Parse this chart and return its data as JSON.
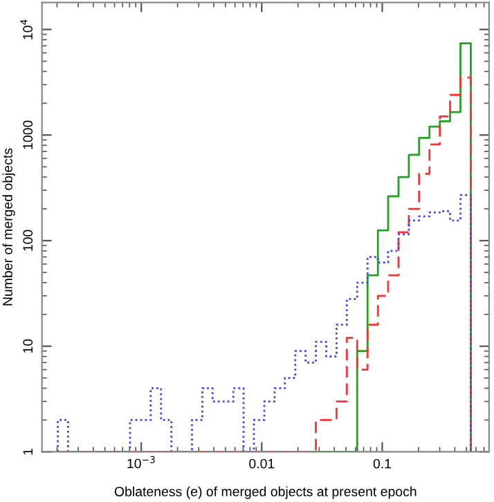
{
  "chart_data": {
    "type": "histogram",
    "xlabel": "Oblateness (e) of merged objects at present epoch",
    "ylabel": "Number of merged objects",
    "log": "xy",
    "bins": [
      0.000203,
      0.000247,
      0.000301,
      0.000366,
      0.000447,
      0.000543,
      0.000662,
      0.000807,
      0.000984,
      0.001197,
      0.001459,
      0.001778,
      0.002163,
      0.002636,
      0.003214,
      0.003908,
      0.004764,
      0.005808,
      0.007063,
      0.00861,
      0.0105,
      0.01279,
      0.01556,
      0.01897,
      0.02312,
      0.02812,
      0.03428,
      0.04178,
      0.05082,
      0.06194,
      0.07551,
      0.09204,
      0.1119,
      0.1365,
      0.1663,
      0.2023,
      0.2466,
      0.3006,
      0.3656,
      0.4457,
      0.5433
    ],
    "series": [
      {
        "color": "#22a022",
        "line_style": "solid",
        "values": [
          null,
          null,
          null,
          null,
          null,
          null,
          null,
          null,
          null,
          null,
          null,
          null,
          null,
          null,
          null,
          null,
          null,
          null,
          null,
          null,
          null,
          null,
          null,
          null,
          null,
          null,
          null,
          null,
          null,
          9,
          47,
          125,
          263,
          400,
          650,
          940,
          1200,
          1350,
          1650,
          7400
        ]
      },
      {
        "color": "#ff3030",
        "line_style": "dashed",
        "values": [
          null,
          null,
          null,
          null,
          null,
          null,
          null,
          null,
          null,
          null,
          null,
          null,
          null,
          null,
          null,
          null,
          null,
          null,
          null,
          null,
          null,
          null,
          null,
          null,
          null,
          2,
          2,
          3,
          12,
          6,
          16,
          30,
          47,
          120,
          200,
          430,
          815,
          1500,
          2400,
          3500
        ]
      },
      {
        "color": "#4040ff",
        "line_style": "dotted",
        "values": [
          2,
          null,
          null,
          null,
          null,
          null,
          null,
          2,
          2,
          4,
          2,
          null,
          null,
          2,
          4,
          3,
          3,
          4,
          null,
          2,
          3,
          4,
          5,
          9,
          7,
          11,
          8,
          16,
          28,
          40,
          70,
          62,
          80,
          115,
          155,
          170,
          185,
          190,
          155,
          270
        ]
      }
    ],
    "xlim": [
      0.00015,
      0.77
    ],
    "ylim": [
      1,
      18000
    ],
    "xticks": [
      {
        "value": 0.001,
        "label": "10$^{−3}$"
      },
      0.01,
      0.1
    ],
    "yticks": [
      1,
      10,
      100,
      1000,
      {
        "value": 10000,
        "label": "10$^{4}$"
      }
    ],
    "grid": false
  }
}
